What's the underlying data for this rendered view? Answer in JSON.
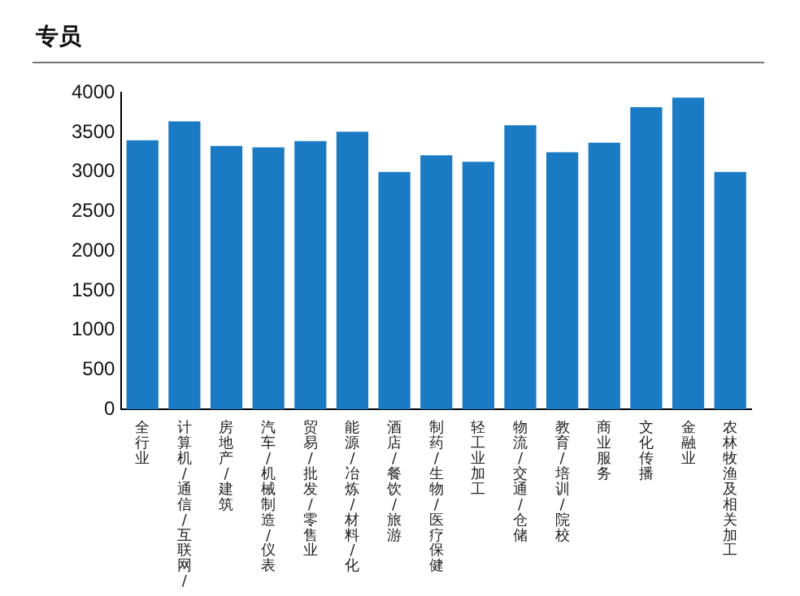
{
  "chart_data": {
    "type": "bar",
    "title": "专员",
    "categories": [
      "全行业",
      "计算机/通信/互联网/",
      "房地产/建筑",
      "汽车/机械制造/仪表",
      "贸易/批发/零售业",
      "能源/冶炼/材料/化",
      "酒店/餐饮/旅游",
      "制药/生物/医疗保健",
      "轻工业加工",
      "物流/交通/仓储",
      "教育/培训/院校",
      "商业服务",
      "文化传播",
      "金融业",
      "农林牧渔及相关加工"
    ],
    "values": [
      3400,
      3640,
      3330,
      3310,
      3390,
      3510,
      3000,
      3210,
      3130,
      3590,
      3250,
      3370,
      3820,
      3940,
      3000
    ],
    "color": "#1a7bc4",
    "ylim": [
      0,
      4000
    ],
    "yticks": [
      0,
      500,
      1000,
      1500,
      2000,
      2500,
      3000,
      3500,
      4000
    ],
    "grid": false,
    "legend": false
  }
}
